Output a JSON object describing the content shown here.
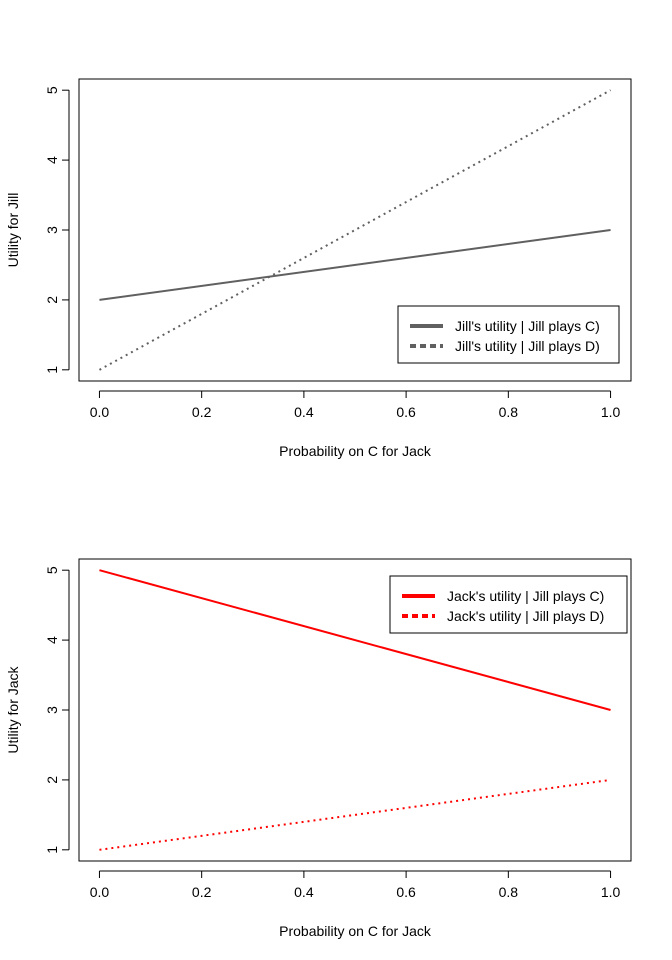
{
  "chart_data": [
    {
      "type": "line",
      "title": "",
      "xlabel": "Probability on C for Jack",
      "ylabel": "Utility for Jill",
      "xlim": [
        0,
        1
      ],
      "ylim": [
        1,
        5
      ],
      "x_ticks": [
        "0.0",
        "0.2",
        "0.4",
        "0.6",
        "0.8",
        "1.0"
      ],
      "y_ticks": [
        "1",
        "2",
        "3",
        "4",
        "5"
      ],
      "grid": false,
      "legend_position": "bottom-right",
      "series": [
        {
          "name": "Jill's utility | Jill plays C)",
          "x": [
            0,
            1
          ],
          "y": [
            2,
            3
          ],
          "color": "#606060",
          "dash": "solid"
        },
        {
          "name": "Jill's utility | Jill plays D)",
          "x": [
            0,
            1
          ],
          "y": [
            1,
            5
          ],
          "color": "#606060",
          "dash": "dotted"
        }
      ]
    },
    {
      "type": "line",
      "title": "",
      "xlabel": "Probability on C for Jack",
      "ylabel": "Utility for Jack",
      "xlim": [
        0,
        1
      ],
      "ylim": [
        1,
        5
      ],
      "x_ticks": [
        "0.0",
        "0.2",
        "0.4",
        "0.6",
        "0.8",
        "1.0"
      ],
      "y_ticks": [
        "1",
        "2",
        "3",
        "4",
        "5"
      ],
      "grid": false,
      "legend_position": "top-right",
      "series": [
        {
          "name": "Jack's utility | Jill plays C)",
          "x": [
            0,
            1
          ],
          "y": [
            5,
            3
          ],
          "color": "#ff0000",
          "dash": "solid"
        },
        {
          "name": "Jack's utility | Jill plays D)",
          "x": [
            0,
            1
          ],
          "y": [
            1,
            2
          ],
          "color": "#ff0000",
          "dash": "dotted"
        }
      ]
    }
  ]
}
